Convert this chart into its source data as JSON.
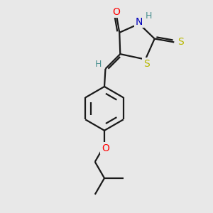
{
  "background_color": "#e8e8e8",
  "bond_color": "#1a1a1a",
  "atom_colors": {
    "O": "#ff0000",
    "N": "#0000bb",
    "S": "#b8b800",
    "H": "#4a9090",
    "C": "#1a1a1a"
  },
  "line_width": 1.6,
  "figsize": [
    3.0,
    3.0
  ],
  "dpi": 100,
  "xlim": [
    0,
    10
  ],
  "ylim": [
    0,
    10
  ]
}
